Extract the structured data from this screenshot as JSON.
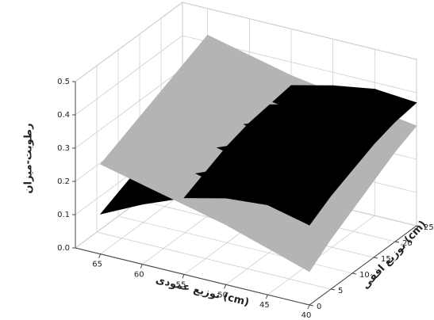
{
  "chart_data": {
    "type": "surface",
    "zlabel": "رطوبت-میزان",
    "xlabel": "توزیع عمودی (cm)",
    "ylabel": "توزیع افقی (cm)",
    "x": [
      65,
      60,
      55,
      50,
      45,
      40
    ],
    "y": [
      0,
      5,
      10,
      15,
      20,
      25
    ],
    "xlim": [
      40,
      68
    ],
    "ylim": [
      0,
      25
    ],
    "zlim": [
      0,
      0.5
    ],
    "xticks": [
      65,
      60,
      55,
      50,
      45,
      40
    ],
    "yticks": [
      0,
      5,
      10,
      15,
      20,
      25
    ],
    "zticks": [
      {
        "value": 0,
        "label": "0.0"
      },
      0.1,
      0.2,
      0.3,
      0.4,
      0.5
    ],
    "grid": true,
    "series": [
      {
        "color": "#b4b4b4",
        "z": [
          [
            0.27,
            0.24,
            0.21,
            0.18,
            0.14,
            0.1
          ],
          [
            0.3,
            0.27,
            0.24,
            0.21,
            0.18,
            0.15
          ],
          [
            0.33,
            0.3,
            0.27,
            0.24,
            0.22,
            0.19
          ],
          [
            0.36,
            0.33,
            0.3,
            0.28,
            0.26,
            0.23
          ],
          [
            0.39,
            0.36,
            0.33,
            0.31,
            0.29,
            0.27
          ],
          [
            0.42,
            0.39,
            0.36,
            0.34,
            0.32,
            0.3
          ]
        ]
      },
      {
        "color": "#000000",
        "z": [
          [
            0.12,
            0.18,
            0.23,
            0.26,
            0.27,
            0.24
          ],
          [
            0.15,
            0.21,
            0.26,
            0.29,
            0.3,
            0.28
          ],
          [
            0.18,
            0.24,
            0.29,
            0.32,
            0.33,
            0.31
          ],
          [
            0.2,
            0.26,
            0.31,
            0.34,
            0.36,
            0.34
          ],
          [
            0.21,
            0.27,
            0.32,
            0.35,
            0.37,
            0.36
          ],
          [
            0.22,
            0.28,
            0.33,
            0.36,
            0.38,
            0.37
          ]
        ]
      }
    ]
  }
}
